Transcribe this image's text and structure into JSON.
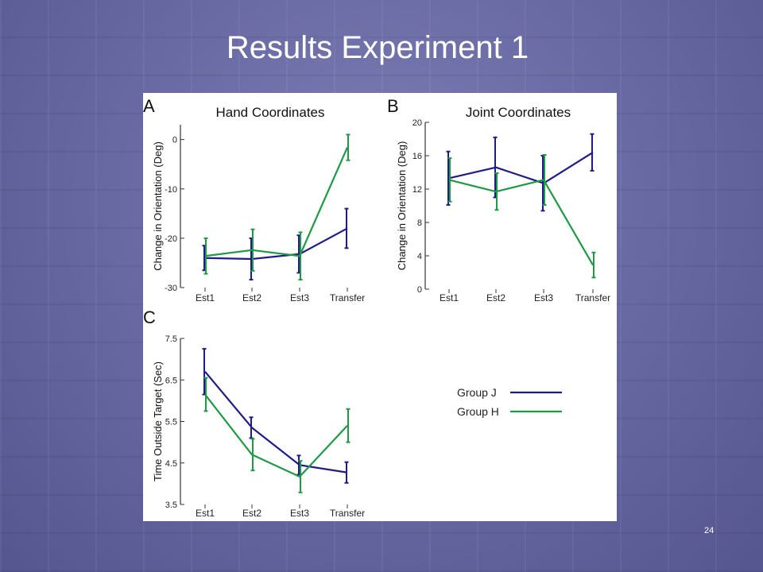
{
  "slide": {
    "title": "Results Experiment 1",
    "page_number": "24"
  },
  "colors": {
    "group_j": "#1f1c8a",
    "group_h": "#1e9a45"
  },
  "legend": [
    {
      "name": "Group J",
      "color": "#1f1c8a"
    },
    {
      "name": "Group H",
      "color": "#1e9a45"
    }
  ],
  "chart_data": [
    {
      "type": "line",
      "panel_label": "A",
      "title": "Hand Coordinates",
      "ylabel": "Change in Orientation (Deg)",
      "categories": [
        "Est1",
        "Est2",
        "Est3",
        "Transfer"
      ],
      "ylim": [
        -30,
        3
      ],
      "yticks": [
        0,
        -10,
        -20,
        -30
      ],
      "series": [
        {
          "name": "Group J",
          "values": [
            -24,
            -24.2,
            -23.2,
            -18
          ],
          "errors": [
            2.5,
            4.2,
            3.8,
            4
          ]
        },
        {
          "name": "Group H",
          "values": [
            -23.6,
            -22.4,
            -23.6,
            -1.6
          ],
          "errors": [
            3.6,
            4.2,
            4.8,
            2.6
          ]
        }
      ]
    },
    {
      "type": "line",
      "panel_label": "B",
      "title": "Joint Coordinates",
      "ylabel": "Change in Orientation (Deg)",
      "categories": [
        "Est1",
        "Est2",
        "Est3",
        "Transfer"
      ],
      "ylim": [
        0,
        20
      ],
      "yticks": [
        0,
        4,
        8,
        12,
        16,
        20
      ],
      "series": [
        {
          "name": "Group J",
          "values": [
            13.3,
            14.6,
            12.7,
            16.4
          ],
          "errors": [
            3.2,
            3.6,
            3.3,
            2.2
          ]
        },
        {
          "name": "Group H",
          "values": [
            13.1,
            11.7,
            13.1,
            2.9
          ],
          "errors": [
            2.6,
            2.2,
            3.0,
            1.5
          ]
        }
      ]
    },
    {
      "type": "line",
      "panel_label": "C",
      "title": "",
      "ylabel": "Time Outside Target (Sec)",
      "categories": [
        "Est1",
        "Est2",
        "Est3",
        "Transfer"
      ],
      "ylim": [
        3.5,
        7.5
      ],
      "yticks": [
        3.5,
        4.5,
        5.5,
        6.5,
        7.5
      ],
      "series": [
        {
          "name": "Group J",
          "values": [
            6.7,
            5.35,
            4.45,
            4.27
          ],
          "errors": [
            0.55,
            0.25,
            0.23,
            0.25
          ]
        },
        {
          "name": "Group H",
          "values": [
            6.15,
            4.7,
            4.17,
            5.4
          ],
          "errors": [
            0.4,
            0.38,
            0.38,
            0.4
          ]
        }
      ]
    }
  ]
}
